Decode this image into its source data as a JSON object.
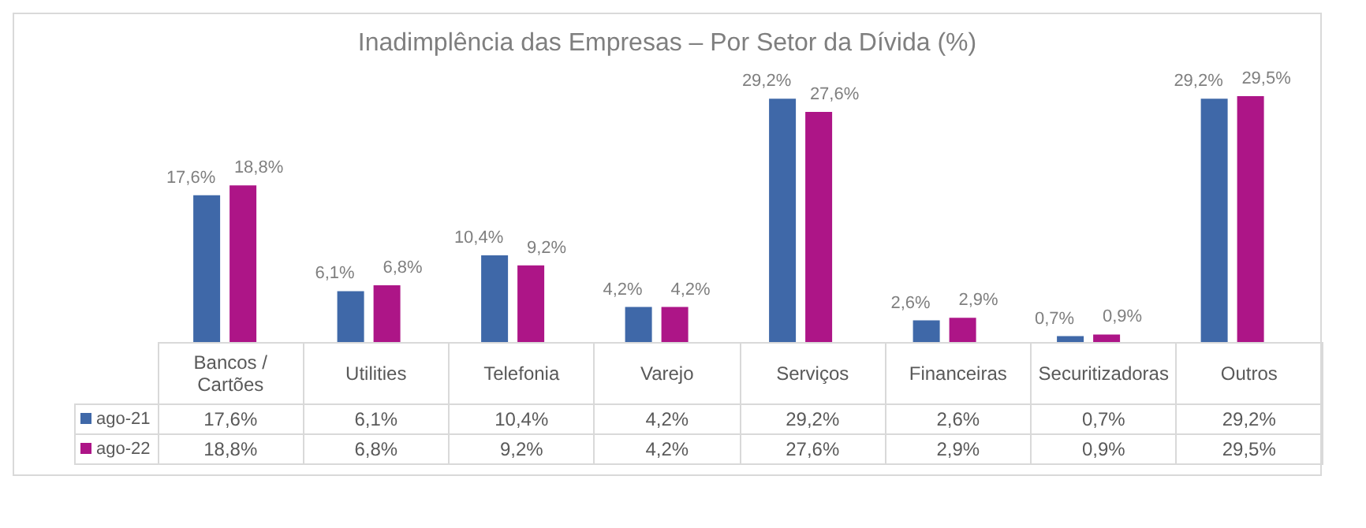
{
  "chart_data": {
    "type": "bar",
    "title": "Inadimplência  das Empresas – Por Setor da Dívida (%)",
    "categories": [
      "Bancos / Cartões",
      "Utilities",
      "Telefonia",
      "Varejo",
      "Serviços",
      "Financeiras",
      "Securitizadoras",
      "Outros"
    ],
    "series": [
      {
        "name": "ago-21",
        "color": "#3f68a8",
        "values": [
          17.6,
          6.1,
          10.4,
          4.2,
          29.2,
          2.6,
          0.7,
          29.2
        ],
        "value_labels": [
          "17,6%",
          "6,1%",
          "10,4%",
          "4,2%",
          "29,2%",
          "2,6%",
          "0,7%",
          "29,2%"
        ]
      },
      {
        "name": "ago-22",
        "color": "#ad1587",
        "values": [
          18.8,
          6.8,
          9.2,
          4.2,
          27.6,
          2.9,
          0.9,
          29.5
        ],
        "value_labels": [
          "18,8%",
          "6,8%",
          "9,2%",
          "4,2%",
          "27,6%",
          "2,9%",
          "0,9%",
          "29,5%"
        ]
      }
    ],
    "legend": "bottom"
  }
}
